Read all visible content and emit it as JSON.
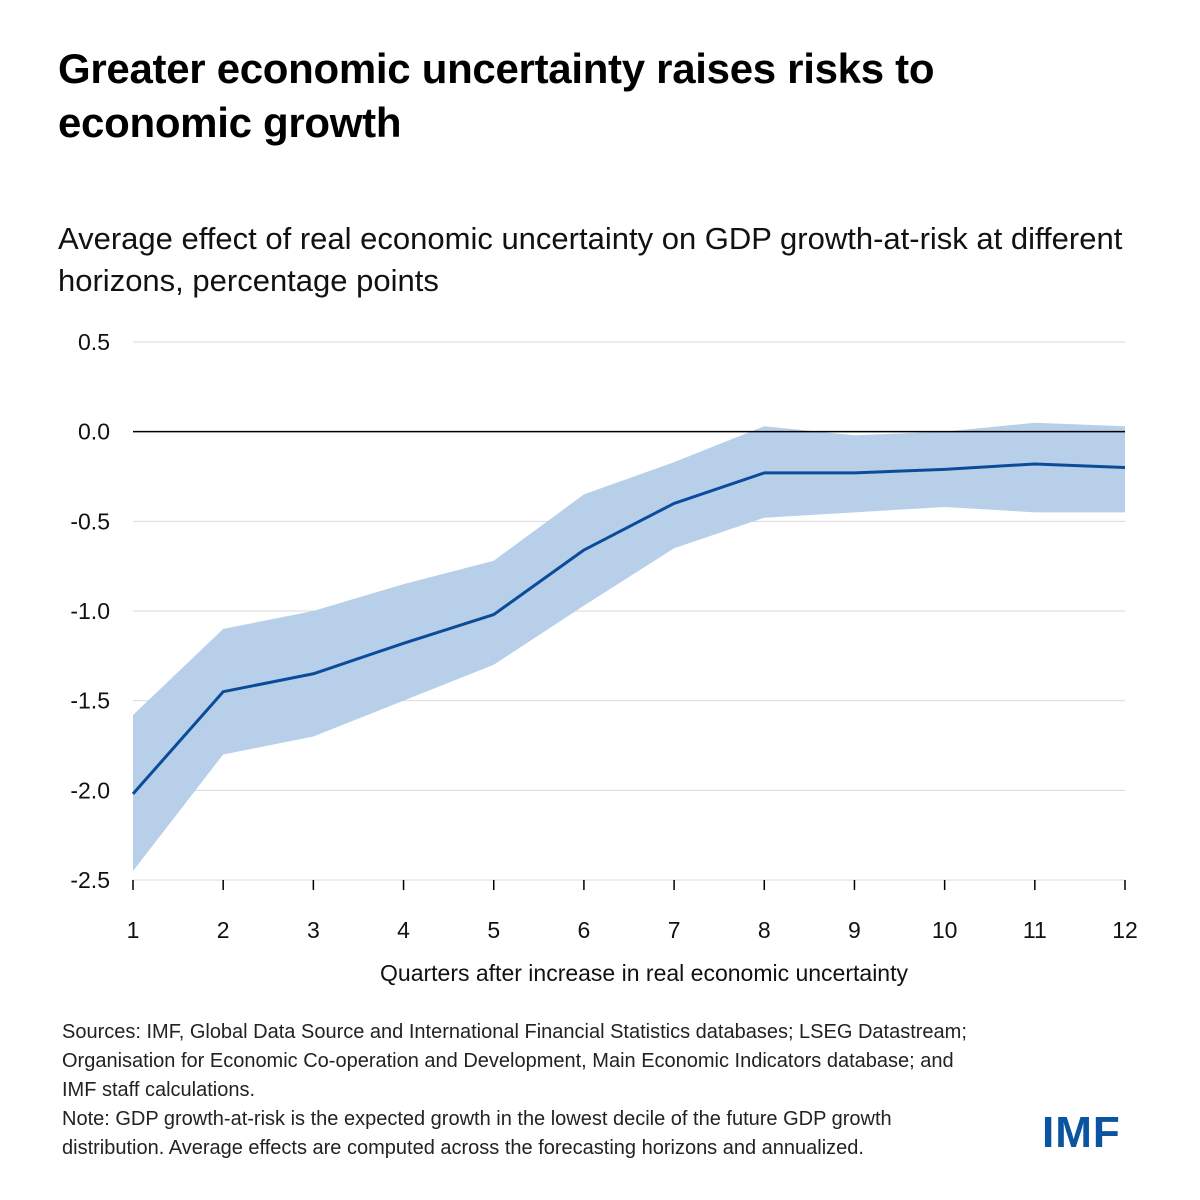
{
  "title": "Greater economic uncertainty raises risks to economic growth",
  "chart_data": {
    "type": "line",
    "title": "Average effect of real economic uncertainty on GDP growth-at-risk at different horizons, percentage points",
    "xlabel": "Quarters after increase in real economic uncertainty",
    "ylabel": "",
    "categories": [
      "1",
      "2",
      "3",
      "4",
      "5",
      "6",
      "7",
      "8",
      "9",
      "10",
      "11",
      "12"
    ],
    "x": [
      1,
      2,
      3,
      4,
      5,
      6,
      7,
      8,
      9,
      10,
      11,
      12
    ],
    "ylim": [
      -2.5,
      0.5
    ],
    "yticks": [
      0.5,
      0.0,
      -0.5,
      -1.0,
      -1.5,
      -2.0,
      -2.5
    ],
    "ytick_labels": [
      "0.5",
      "0.0",
      "-0.5",
      "-1.0",
      "-1.5",
      "-2.0",
      "-2.5"
    ],
    "grid": true,
    "series": [
      {
        "name": "Average effect",
        "values": [
          -2.02,
          -1.45,
          -1.35,
          -1.18,
          -1.02,
          -0.66,
          -0.4,
          -0.23,
          -0.23,
          -0.21,
          -0.18,
          -0.2
        ]
      },
      {
        "name": "Upper bound",
        "values": [
          -1.58,
          -1.1,
          -1.0,
          -0.85,
          -0.72,
          -0.35,
          -0.17,
          0.03,
          -0.02,
          0.0,
          0.05,
          0.03
        ]
      },
      {
        "name": "Lower bound",
        "values": [
          -2.45,
          -1.8,
          -1.7,
          -1.5,
          -1.3,
          -0.97,
          -0.65,
          -0.48,
          -0.45,
          -0.42,
          -0.45,
          -0.45
        ]
      }
    ],
    "colors": {
      "line": "#0b4c9a",
      "band": "#b8cfea",
      "zero_line": "#000000",
      "grid": "#d9d9d9"
    }
  },
  "footnote": {
    "sources": "Sources: IMF, Global Data Source and International Financial Statistics databases; LSEG Datastream; Organisation for Economic Co-operation and Development, Main Economic Indicators database; and IMF staff calculations.",
    "note": "Note: GDP growth-at-risk is the expected growth in the lowest decile of the future GDP growth distribution. Average effects are computed across the forecasting horizons and annualized."
  },
  "logo": "IMF"
}
